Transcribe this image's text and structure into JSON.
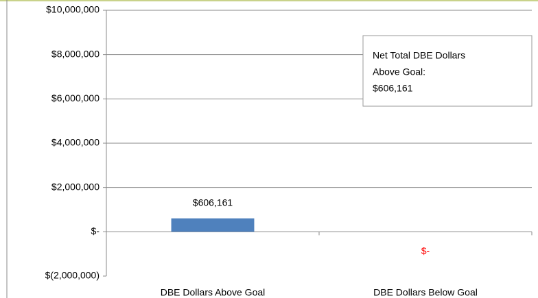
{
  "chart_data": {
    "type": "bar",
    "categories": [
      "DBE Dollars Above Goal",
      "DBE Dollars Below Goal"
    ],
    "values": [
      606161,
      0
    ],
    "value_labels": [
      "$606,161",
      "$-"
    ],
    "value_label_colors": [
      "#000000",
      "#ff0000"
    ],
    "color": "#4f81bd",
    "ylim": [
      -2000000,
      10000000
    ],
    "yticks": [
      {
        "value": -2000000,
        "label": "$(2,000,000)"
      },
      {
        "value": 0,
        "label": "$-"
      },
      {
        "value": 2000000,
        "label": "$2,000,000"
      },
      {
        "value": 4000000,
        "label": "$4,000,000"
      },
      {
        "value": 6000000,
        "label": "$6,000,000"
      },
      {
        "value": 8000000,
        "label": "$8,000,000"
      },
      {
        "value": 10000000,
        "label": "$10,000,000"
      }
    ],
    "grid": true,
    "annotation": [
      "Net Total DBE Dollars",
      "Above Goal:",
      "$606,161"
    ]
  }
}
